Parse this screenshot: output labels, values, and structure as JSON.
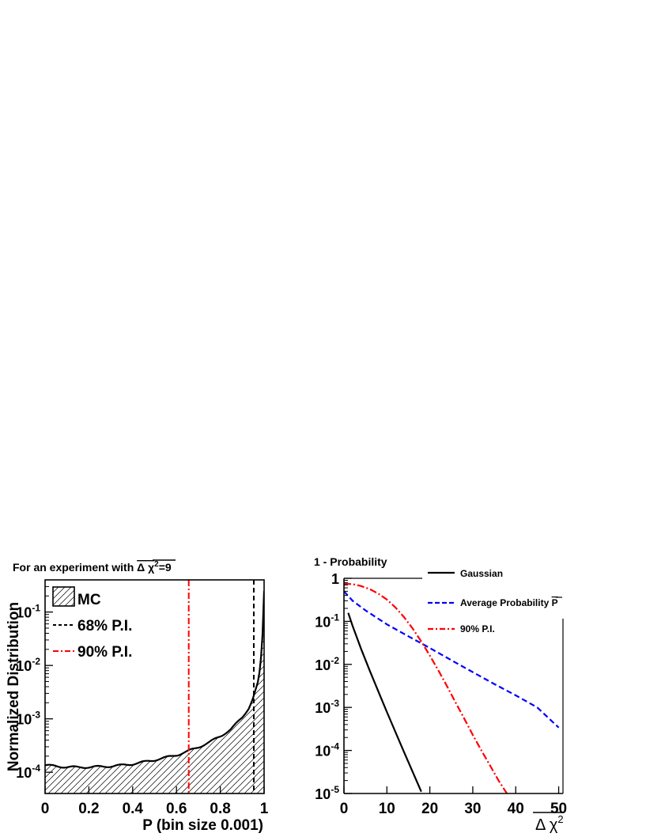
{
  "chart_data": [
    {
      "type": "area",
      "title": "For an experiment with",
      "title_symbol": "Δ χ",
      "title_sup": "2",
      "title_value": "=9",
      "xlabel": "P (bin size 0.001)",
      "ylabel": "Normalized Distribution",
      "xlim": [
        0,
        1
      ],
      "ylim": [
        4e-05,
        0.4
      ],
      "log_y": true,
      "xticks": [
        "0",
        "0.2",
        "0.4",
        "0.6",
        "0.8",
        "1"
      ],
      "xtick_values": [
        0,
        0.2,
        0.4,
        0.6,
        0.8,
        1
      ],
      "yticks": [
        {
          "value": 0.0001,
          "base": "10",
          "exp": "-4"
        },
        {
          "value": 0.001,
          "base": "10",
          "exp": "-3"
        },
        {
          "value": 0.01,
          "base": "10",
          "exp": "-2"
        },
        {
          "value": 0.1,
          "base": "10",
          "exp": "-1"
        }
      ],
      "legend_position": "top-left",
      "legend": [
        {
          "label": "MC",
          "style": "hatched",
          "color": "#000000"
        },
        {
          "label": "68% P.I.",
          "style": "dashed",
          "color": "#000000"
        },
        {
          "label": "90% P.I.",
          "style": "dashdot",
          "color": "#ff0000"
        }
      ],
      "series": [
        {
          "name": "MC",
          "x": [
            0,
            0.05,
            0.1,
            0.15,
            0.2,
            0.25,
            0.3,
            0.35,
            0.4,
            0.45,
            0.5,
            0.55,
            0.6,
            0.65,
            0.7,
            0.75,
            0.8,
            0.85,
            0.9,
            0.93,
            0.95,
            0.97,
            0.98,
            0.99,
            0.995,
            1.0
          ],
          "values": [
            0.000135,
            0.00013,
            0.000125,
            0.000124,
            0.000125,
            0.000127,
            0.00013,
            0.000135,
            0.000143,
            0.000155,
            0.00017,
            0.000188,
            0.00021,
            0.000245,
            0.000295,
            0.000365,
            0.00047,
            0.00065,
            0.00105,
            0.0016,
            0.0025,
            0.0045,
            0.008,
            0.02,
            0.06,
            0.25
          ]
        }
      ],
      "vlines": [
        {
          "name": "68% P.I.",
          "x": 0.953,
          "color": "#000000",
          "style": "dashed"
        },
        {
          "name": "90% P.I.",
          "x": 0.656,
          "color": "#ff0000",
          "style": "dashdot"
        }
      ]
    },
    {
      "type": "line",
      "title": "1 - Probability",
      "xlabel_symbol": "Δ χ",
      "xlabel_sup": "2",
      "xlim": [
        0,
        51
      ],
      "ylim": [
        1e-05,
        1
      ],
      "log_y": true,
      "xticks": [
        "0",
        "10",
        "20",
        "30",
        "40",
        "50"
      ],
      "xtick_values": [
        0,
        10,
        20,
        30,
        40,
        50
      ],
      "yticks": [
        {
          "value": 1e-05,
          "base": "10",
          "exp": "-5"
        },
        {
          "value": 0.0001,
          "base": "10",
          "exp": "-4"
        },
        {
          "value": 0.001,
          "base": "10",
          "exp": "-3"
        },
        {
          "value": 0.01,
          "base": "10",
          "exp": "-2"
        },
        {
          "value": 0.1,
          "base": "10",
          "exp": "-1"
        },
        {
          "value": 1,
          "base": "1",
          "exp": ""
        }
      ],
      "legend_position": "top-right",
      "series": [
        {
          "name": "Gaussian",
          "color": "#000000",
          "style": "solid",
          "x": [
            1,
            2,
            4,
            6,
            8,
            10,
            12,
            14,
            16,
            18
          ],
          "values": [
            0.157,
            0.0786,
            0.0228,
            0.00716,
            0.00234,
            0.000783,
            0.000266,
            9.15e-05,
            3.17e-05,
            1.1e-05
          ]
        },
        {
          "name": "Average Probability",
          "legend_suffix": "P",
          "color": "#0000ff",
          "style": "dashed",
          "x": [
            0,
            2,
            5,
            10,
            15,
            20,
            25,
            30,
            35,
            40,
            45,
            50
          ],
          "values": [
            0.5,
            0.3,
            0.18,
            0.085,
            0.045,
            0.024,
            0.0125,
            0.0066,
            0.0035,
            0.0019,
            0.001,
            0.00034
          ]
        },
        {
          "name": "90% P.I.",
          "color": "#ff0000",
          "style": "dashdot",
          "x": [
            0,
            2,
            4,
            6,
            8,
            10,
            12,
            14,
            16,
            18,
            20,
            22,
            24,
            26,
            28,
            30,
            32,
            34,
            36,
            38
          ],
          "values": [
            0.75,
            0.73,
            0.66,
            0.56,
            0.44,
            0.32,
            0.21,
            0.125,
            0.068,
            0.034,
            0.016,
            0.0072,
            0.0031,
            0.0013,
            0.00055,
            0.00023,
            0.0001,
            4.5e-05,
            2e-05,
            9.8e-06
          ]
        }
      ]
    }
  ]
}
